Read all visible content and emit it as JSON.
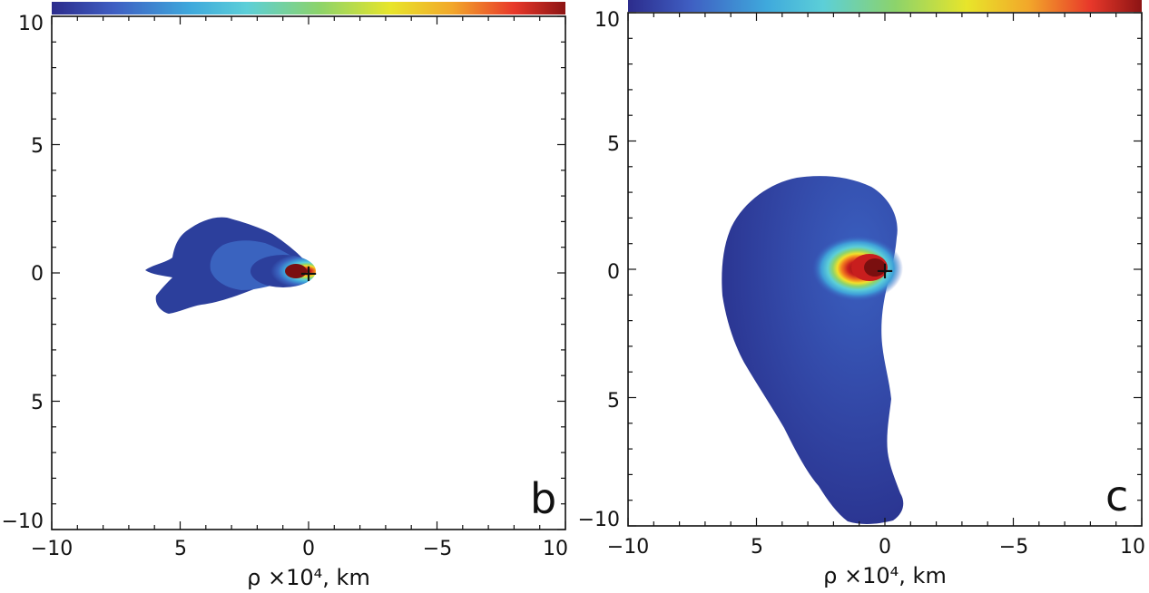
{
  "chart_data": [
    {
      "type": "heatmap",
      "panel_label": "b",
      "xlabel": "ρ ×10⁴,  km",
      "xlim": [
        -10,
        10
      ],
      "ylim": [
        -10,
        10
      ],
      "x_ticks": [
        "−10",
        "5",
        "0",
        "−5",
        "10"
      ],
      "y_ticks": [
        "10",
        "5",
        "0",
        "5",
        "−10"
      ],
      "colorbar": {
        "position": "top",
        "colors": [
          "#2c2c8c",
          "#3f5ec2",
          "#3fa9dc",
          "#5ccfd8",
          "#8cd36b",
          "#e8e52a",
          "#f2a72a",
          "#e8382a",
          "#8c1414"
        ]
      },
      "nucleus_marker": {
        "x": 0,
        "y": 0,
        "symbol": "+"
      },
      "extent": {
        "x_max": 5.7,
        "x_min": -0.3,
        "y_max": 2.2,
        "y_min": -1.8
      }
    },
    {
      "type": "heatmap",
      "panel_label": "c",
      "xlabel": "ρ ×10⁴,  km",
      "xlim": [
        -10,
        10
      ],
      "ylim": [
        -10,
        10
      ],
      "x_ticks": [
        "−10",
        "5",
        "0",
        "−5",
        "10"
      ],
      "y_ticks": [
        "10",
        "5",
        "0",
        "5",
        "−10"
      ],
      "colorbar": {
        "position": "top",
        "colors": [
          "#2c2c8c",
          "#3f5ec2",
          "#3fa9dc",
          "#5ccfd8",
          "#8cd36b",
          "#e8e52a",
          "#f2a72a",
          "#e8382a",
          "#8c1414"
        ]
      },
      "nucleus_marker": {
        "x": 0,
        "y": 0,
        "symbol": "+"
      },
      "extent": {
        "x_max": 6.3,
        "x_min": -0.7,
        "y_max": 3.6,
        "y_min": -9.8
      }
    }
  ]
}
